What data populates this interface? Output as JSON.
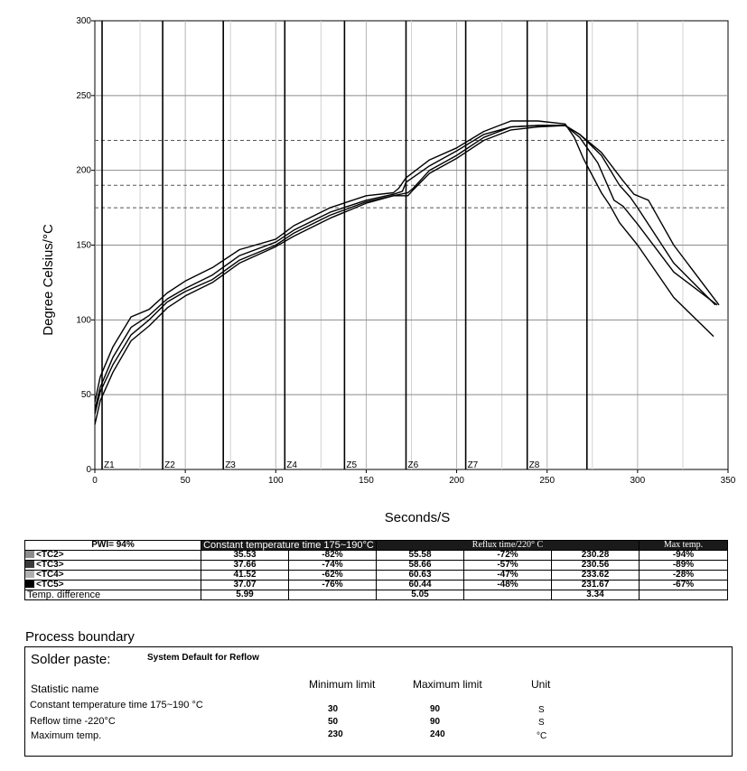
{
  "chart_data": {
    "type": "line",
    "xlabel": "Seconds/S",
    "ylabel": "Degree Celsius/°C",
    "xlim": [
      0,
      350
    ],
    "ylim": [
      0,
      300
    ],
    "x_ticks": [
      0,
      50,
      100,
      150,
      200,
      250,
      300,
      350
    ],
    "y_ticks": [
      0,
      50,
      100,
      150,
      200,
      250,
      300
    ],
    "dashed_reference_lines": [
      175,
      190,
      220
    ],
    "zones": [
      {
        "label": "Z1",
        "x": 4
      },
      {
        "label": "Z2",
        "x": 37.5
      },
      {
        "label": "Z3",
        "x": 71
      },
      {
        "label": "Z4",
        "x": 105
      },
      {
        "label": "Z5",
        "x": 138
      },
      {
        "label": "Z6",
        "x": 172
      },
      {
        "label": "Z7",
        "x": 205
      },
      {
        "label": "Z8",
        "x": 239
      },
      {
        "label": "",
        "x": 272
      }
    ],
    "series": [
      {
        "name": "TC2",
        "points": [
          [
            0,
            40
          ],
          [
            3,
            55
          ],
          [
            10,
            75
          ],
          [
            20,
            95
          ],
          [
            30,
            103
          ],
          [
            40,
            114
          ],
          [
            50,
            121
          ],
          [
            65,
            130
          ],
          [
            80,
            143
          ],
          [
            100,
            152
          ],
          [
            110,
            160
          ],
          [
            130,
            172
          ],
          [
            150,
            180
          ],
          [
            165,
            184
          ],
          [
            170,
            186
          ],
          [
            172,
            192
          ],
          [
            185,
            203
          ],
          [
            200,
            213
          ],
          [
            215,
            224
          ],
          [
            230,
            229
          ],
          [
            245,
            230
          ],
          [
            260,
            230
          ],
          [
            268,
            222
          ],
          [
            278,
            205
          ],
          [
            287,
            180
          ],
          [
            292,
            176
          ],
          [
            300,
            164
          ],
          [
            320,
            132
          ],
          [
            344,
            110
          ]
        ]
      },
      {
        "name": "TC3",
        "points": [
          [
            0,
            37
          ],
          [
            3,
            52
          ],
          [
            10,
            70
          ],
          [
            20,
            90
          ],
          [
            30,
            100
          ],
          [
            40,
            112
          ],
          [
            50,
            119
          ],
          [
            65,
            127
          ],
          [
            80,
            140
          ],
          [
            100,
            150
          ],
          [
            110,
            158
          ],
          [
            130,
            170
          ],
          [
            150,
            179
          ],
          [
            165,
            183
          ],
          [
            173,
            185
          ],
          [
            176,
            188
          ],
          [
            185,
            200
          ],
          [
            200,
            210
          ],
          [
            215,
            222
          ],
          [
            230,
            229
          ],
          [
            245,
            230
          ],
          [
            260,
            230
          ],
          [
            268,
            224
          ],
          [
            280,
            210
          ],
          [
            290,
            190
          ],
          [
            296,
            182
          ],
          [
            300,
            175
          ],
          [
            320,
            138
          ],
          [
            343,
            110
          ]
        ]
      },
      {
        "name": "TC4",
        "points": [
          [
            0,
            45
          ],
          [
            3,
            62
          ],
          [
            10,
            82
          ],
          [
            20,
            102
          ],
          [
            30,
            107
          ],
          [
            40,
            118
          ],
          [
            50,
            126
          ],
          [
            65,
            135
          ],
          [
            80,
            147
          ],
          [
            100,
            154
          ],
          [
            110,
            163
          ],
          [
            130,
            175
          ],
          [
            150,
            183
          ],
          [
            165,
            185
          ],
          [
            168,
            188
          ],
          [
            172,
            195
          ],
          [
            185,
            207
          ],
          [
            200,
            215
          ],
          [
            215,
            226
          ],
          [
            230,
            233
          ],
          [
            245,
            233
          ],
          [
            260,
            231
          ],
          [
            265,
            222
          ],
          [
            270,
            208
          ],
          [
            280,
            185
          ],
          [
            285,
            176
          ],
          [
            290,
            165
          ],
          [
            300,
            150
          ],
          [
            320,
            115
          ],
          [
            342,
            89
          ]
        ]
      },
      {
        "name": "TC5",
        "points": [
          [
            0,
            30
          ],
          [
            3,
            46
          ],
          [
            10,
            65
          ],
          [
            20,
            86
          ],
          [
            30,
            96
          ],
          [
            40,
            108
          ],
          [
            50,
            116
          ],
          [
            65,
            125
          ],
          [
            80,
            138
          ],
          [
            100,
            149
          ],
          [
            110,
            156
          ],
          [
            130,
            168
          ],
          [
            150,
            178
          ],
          [
            165,
            183
          ],
          [
            173,
            183
          ],
          [
            176,
            187
          ],
          [
            185,
            198
          ],
          [
            200,
            208
          ],
          [
            215,
            220
          ],
          [
            230,
            227
          ],
          [
            245,
            229
          ],
          [
            260,
            230
          ],
          [
            268,
            224
          ],
          [
            280,
            212
          ],
          [
            292,
            193
          ],
          [
            298,
            184
          ],
          [
            302,
            182
          ],
          [
            306,
            180
          ],
          [
            320,
            150
          ],
          [
            345,
            110
          ]
        ]
      }
    ]
  },
  "table": {
    "pwi": "PWI= 94%",
    "head_constant": "Constant temperature time 175~190°C",
    "head_reflux": "Reflux time/220° C",
    "head_max": "Max temp.",
    "rows": [
      {
        "label": "<TC2>",
        "swatch": "#8c8c8c",
        "c1": "35.53",
        "c2": "-82%",
        "c3": "55.58",
        "c4": "-72%",
        "c5": "230.28",
        "c6": "-94%"
      },
      {
        "label": "<TC3>",
        "swatch": "#3a3a3a",
        "c1": "37.66",
        "c2": "-74%",
        "c3": "58.66",
        "c4": "-57%",
        "c5": "230.56",
        "c6": "-89%"
      },
      {
        "label": "<TC4>",
        "swatch": "#b0b0b0",
        "c1": "41.52",
        "c2": "-62%",
        "c3": "60.63",
        "c4": "-47%",
        "c5": "233.62",
        "c6": "-28%"
      },
      {
        "label": "<TC5>",
        "swatch": "#000000",
        "c1": "37.07",
        "c2": "-76%",
        "c3": "60.44",
        "c4": "-48%",
        "c5": "231.67",
        "c6": "-67%"
      }
    ],
    "diff": {
      "label": "Temp. difference",
      "c1": "5.99",
      "c3": "5.05",
      "c5": "3.34"
    }
  },
  "process_boundary": {
    "title": "Process boundary",
    "solder_label": "Solder paste:",
    "solder_value": "System Default for Reflow",
    "col_stat": "Statistic name",
    "col_min": "Minimum limit",
    "col_max": "Maximum limit",
    "col_unit": "Unit",
    "rows": [
      {
        "name": "Constant temperature time 175~190 °C",
        "min": "30",
        "max": "90",
        "unit": "S"
      },
      {
        "name": "Reflow time -220°C",
        "min": "50",
        "max": "90",
        "unit": "S"
      },
      {
        "name": "Maximum temp.",
        "min": "230",
        "max": "240",
        "unit": "°C"
      }
    ]
  }
}
